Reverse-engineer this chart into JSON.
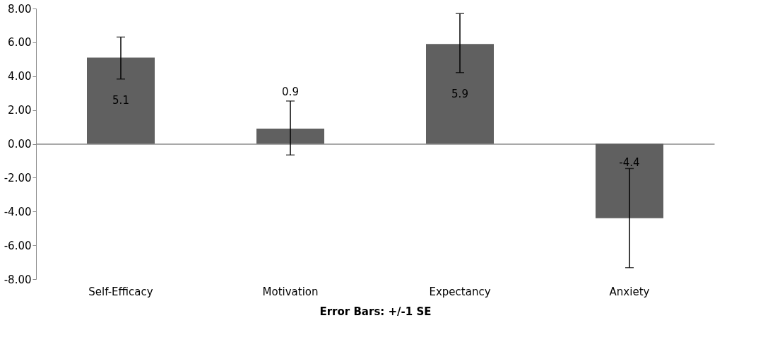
{
  "chart_data": {
    "type": "bar",
    "xlabel": "Error Bars: +/-1 SE",
    "categories": [
      "Self-Efficacy",
      "Motivation",
      "Expectancy",
      "Anxiety"
    ],
    "values": [
      5.1,
      0.9,
      5.9,
      -4.4
    ],
    "errors": [
      [
        3.83,
        6.31
      ],
      [
        -0.66,
        2.53
      ],
      [
        4.21,
        7.7
      ],
      [
        -7.32,
        -1.46
      ]
    ],
    "color": "#606060",
    "ylim": [
      -8,
      8
    ],
    "yticks": [
      {
        "value": -8,
        "label": "-8.00"
      },
      {
        "value": -6,
        "label": "-6.00"
      },
      {
        "value": -4,
        "label": "-4.00"
      },
      {
        "value": -2,
        "label": "-2.00"
      },
      {
        "value": 0,
        "label": "0.00"
      },
      {
        "value": 2,
        "label": "2.00"
      },
      {
        "value": 4,
        "label": "4.00"
      },
      {
        "value": 6,
        "label": "6.00"
      },
      {
        "value": 8,
        "label": "8.00"
      }
    ],
    "data_labels": true
  }
}
